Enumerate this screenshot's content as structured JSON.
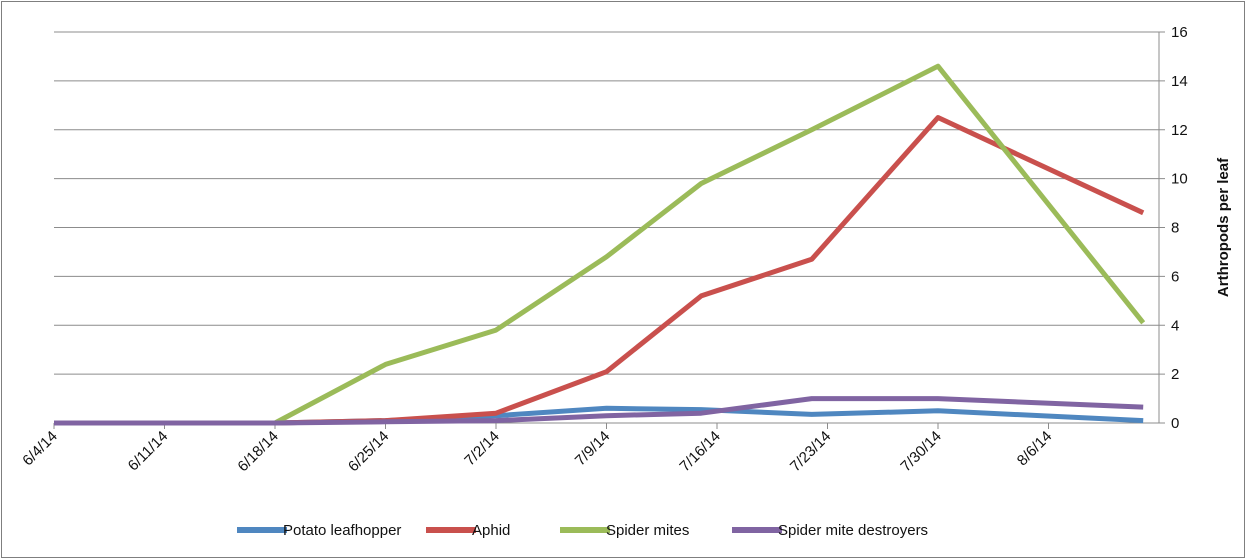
{
  "chart_data": {
    "type": "line",
    "title": "",
    "xlabel": "",
    "ylabel": "Arthropods per leaf",
    "x_tick_labels": [
      "6/4/14",
      "6/11/14",
      "6/18/14",
      "6/25/14",
      "7/2/14",
      "7/9/14",
      "7/16/14",
      "7/23/14",
      "7/30/14",
      "8/6/14"
    ],
    "ylim": [
      0,
      16
    ],
    "y_ticks": [
      0,
      2,
      4,
      6,
      8,
      10,
      12,
      14,
      16
    ],
    "y_axis_side": "right",
    "grid": true,
    "legend_position": "bottom",
    "series": [
      {
        "name": "Potato leafhopper",
        "color": "#4f87c0",
        "points": [
          [
            "6/4/14",
            0
          ],
          [
            "6/11/14",
            0
          ],
          [
            "6/18/14",
            0
          ],
          [
            "6/25/14",
            0.1
          ],
          [
            "7/2/14",
            0.3
          ],
          [
            "7/9/14",
            0.6
          ],
          [
            "7/15/14",
            0.55
          ],
          [
            "7/22/14",
            0.35
          ],
          [
            "7/30/14",
            0.5
          ],
          [
            "8/12/14",
            0.1
          ]
        ]
      },
      {
        "name": "Aphid",
        "color": "#c9504d",
        "points": [
          [
            "6/4/14",
            0
          ],
          [
            "6/11/14",
            0
          ],
          [
            "6/18/14",
            0
          ],
          [
            "6/25/14",
            0.1
          ],
          [
            "7/2/14",
            0.4
          ],
          [
            "7/9/14",
            2.1
          ],
          [
            "7/15/14",
            5.2
          ],
          [
            "7/22/14",
            6.7
          ],
          [
            "7/30/14",
            12.5
          ],
          [
            "8/12/14",
            8.6
          ]
        ]
      },
      {
        "name": "Spider mites",
        "color": "#9bbb59",
        "points": [
          [
            "6/4/14",
            0
          ],
          [
            "6/11/14",
            0
          ],
          [
            "6/18/14",
            0
          ],
          [
            "6/25/14",
            2.4
          ],
          [
            "7/2/14",
            3.8
          ],
          [
            "7/9/14",
            6.8
          ],
          [
            "7/15/14",
            9.8
          ],
          [
            "7/22/14",
            12.0
          ],
          [
            "7/30/14",
            14.6
          ],
          [
            "8/12/14",
            4.1
          ]
        ]
      },
      {
        "name": "Spider mite destroyers",
        "color": "#8064a2",
        "points": [
          [
            "6/4/14",
            0
          ],
          [
            "6/11/14",
            0
          ],
          [
            "6/18/14",
            0
          ],
          [
            "6/25/14",
            0.05
          ],
          [
            "7/2/14",
            0.1
          ],
          [
            "7/9/14",
            0.3
          ],
          [
            "7/15/14",
            0.4
          ],
          [
            "7/22/14",
            1.0
          ],
          [
            "7/30/14",
            1.0
          ],
          [
            "8/12/14",
            0.65
          ]
        ]
      }
    ]
  }
}
